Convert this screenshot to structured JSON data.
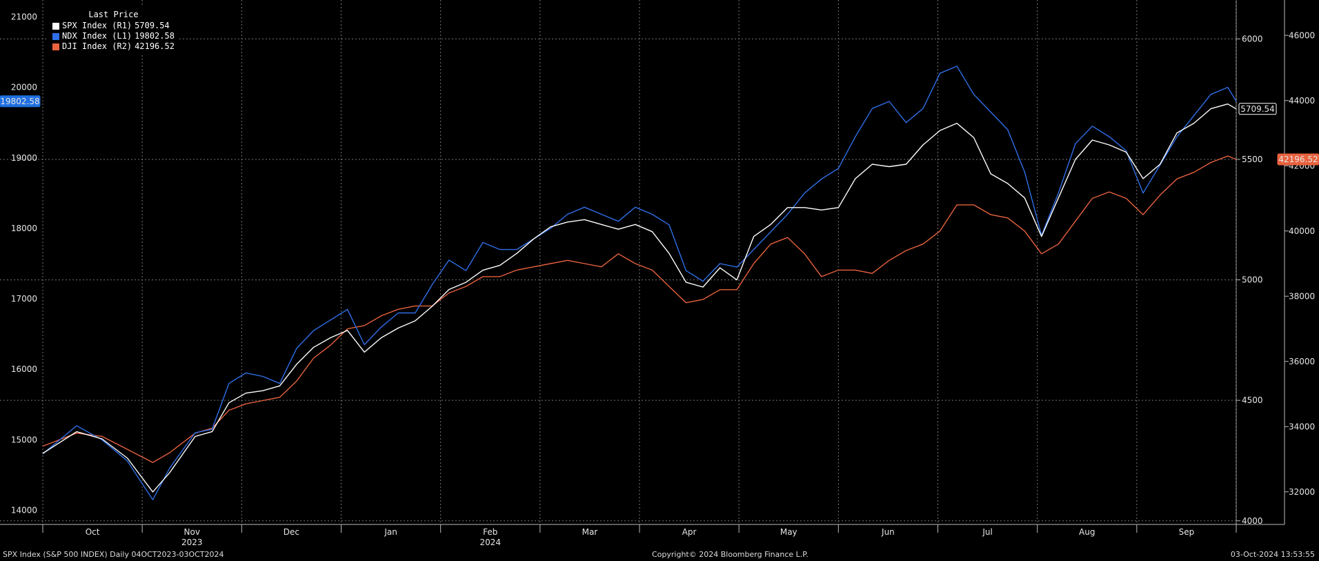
{
  "legend": {
    "header": "Last Price",
    "items": [
      {
        "label": "SPX Index  (R1)",
        "value": "5709.54",
        "color": "#ffffff"
      },
      {
        "label": "NDX Index  (L1)",
        "value": "19802.58",
        "color": "#2f6fe8"
      },
      {
        "label": "DJI Index  (R2)",
        "value": "42196.52",
        "color": "#e8623e"
      }
    ]
  },
  "footer": {
    "left": "SPX Index (S&P 500 INDEX)  Daily 04OCT2023-03OCT2024",
    "center": "Copyright© 2024 Bloomberg Finance L.P.",
    "right": "03-Oct-2024 13:53:55"
  },
  "chart_data": {
    "type": "line",
    "x_months": [
      "Oct",
      "Nov",
      "Dec",
      "Jan",
      "Feb",
      "Mar",
      "Apr",
      "May",
      "Jun",
      "Jul",
      "Aug",
      "Sep"
    ],
    "x_years": [
      "2023",
      "2024"
    ],
    "axes": {
      "left1": {
        "ticks": [
          14000,
          15000,
          16000,
          17000,
          18000,
          19000,
          20000,
          21000
        ],
        "range": [
          13800,
          21200
        ]
      },
      "right1": {
        "ticks": [
          4000,
          4500,
          5000,
          5500,
          6000
        ],
        "range": [
          3985,
          6150
        ]
      },
      "right2": {
        "ticks": [
          32000,
          34000,
          36000,
          38000,
          40000,
          42000,
          44000,
          46000
        ],
        "range": [
          31000,
          47000
        ]
      }
    },
    "grid": true,
    "legend_position": "top-left",
    "last_labels": [
      {
        "series": "NDX Index",
        "value": "19802.58",
        "color": "#1f6fe0"
      },
      {
        "series": "SPX Index",
        "value": "5709.54",
        "color": "#ffffff"
      },
      {
        "series": "DJI Index",
        "value": "42196.52",
        "color": "#e8623e"
      }
    ],
    "series": [
      {
        "name": "NDX Index",
        "axis": "left1",
        "color": "#2f6fe8",
        "points": [
          [
            0,
            14800
          ],
          [
            4,
            15200
          ],
          [
            7,
            15000
          ],
          [
            10,
            14700
          ],
          [
            13,
            14150
          ],
          [
            15,
            14600
          ],
          [
            18,
            15100
          ],
          [
            20,
            15150
          ],
          [
            22,
            15800
          ],
          [
            24,
            15950
          ],
          [
            26,
            15900
          ],
          [
            28,
            15800
          ],
          [
            30,
            16300
          ],
          [
            32,
            16550
          ],
          [
            34,
            16700
          ],
          [
            36,
            16850
          ],
          [
            38,
            16350
          ],
          [
            40,
            16600
          ],
          [
            42,
            16800
          ],
          [
            44,
            16800
          ],
          [
            46,
            17200
          ],
          [
            48,
            17550
          ],
          [
            50,
            17400
          ],
          [
            52,
            17800
          ],
          [
            54,
            17700
          ],
          [
            56,
            17700
          ],
          [
            58,
            17850
          ],
          [
            60,
            18000
          ],
          [
            62,
            18200
          ],
          [
            64,
            18300
          ],
          [
            66,
            18200
          ],
          [
            68,
            18100
          ],
          [
            70,
            18300
          ],
          [
            72,
            18200
          ],
          [
            74,
            18050
          ],
          [
            76,
            17400
          ],
          [
            78,
            17250
          ],
          [
            80,
            17500
          ],
          [
            82,
            17450
          ],
          [
            84,
            17700
          ],
          [
            86,
            17950
          ],
          [
            88,
            18200
          ],
          [
            90,
            18500
          ],
          [
            92,
            18700
          ],
          [
            94,
            18850
          ],
          [
            96,
            19300
          ],
          [
            98,
            19700
          ],
          [
            100,
            19800
          ],
          [
            102,
            19500
          ],
          [
            104,
            19700
          ],
          [
            106,
            20200
          ],
          [
            108,
            20300
          ],
          [
            110,
            19900
          ],
          [
            112,
            19650
          ],
          [
            114,
            19400
          ],
          [
            116,
            18800
          ],
          [
            118,
            17900
          ],
          [
            120,
            18500
          ],
          [
            122,
            19200
          ],
          [
            124,
            19450
          ],
          [
            126,
            19300
          ],
          [
            128,
            19100
          ],
          [
            130,
            18500
          ],
          [
            132,
            18900
          ],
          [
            134,
            19300
          ],
          [
            136,
            19600
          ],
          [
            138,
            19900
          ],
          [
            140,
            20000
          ],
          [
            141,
            19802.58
          ]
        ]
      },
      {
        "name": "SPX Index",
        "axis": "right1",
        "color": "#ffffff",
        "points": [
          [
            0,
            4280
          ],
          [
            4,
            4370
          ],
          [
            7,
            4340
          ],
          [
            10,
            4260
          ],
          [
            13,
            4120
          ],
          [
            15,
            4200
          ],
          [
            18,
            4350
          ],
          [
            20,
            4370
          ],
          [
            22,
            4490
          ],
          [
            24,
            4530
          ],
          [
            26,
            4540
          ],
          [
            28,
            4560
          ],
          [
            30,
            4650
          ],
          [
            32,
            4720
          ],
          [
            34,
            4760
          ],
          [
            36,
            4790
          ],
          [
            38,
            4700
          ],
          [
            40,
            4760
          ],
          [
            42,
            4800
          ],
          [
            44,
            4830
          ],
          [
            46,
            4890
          ],
          [
            48,
            4960
          ],
          [
            50,
            4990
          ],
          [
            52,
            5040
          ],
          [
            54,
            5060
          ],
          [
            56,
            5110
          ],
          [
            58,
            5170
          ],
          [
            60,
            5220
          ],
          [
            62,
            5240
          ],
          [
            64,
            5250
          ],
          [
            66,
            5230
          ],
          [
            68,
            5210
          ],
          [
            70,
            5230
          ],
          [
            72,
            5200
          ],
          [
            74,
            5110
          ],
          [
            76,
            4990
          ],
          [
            78,
            4970
          ],
          [
            80,
            5050
          ],
          [
            82,
            5000
          ],
          [
            84,
            5180
          ],
          [
            86,
            5230
          ],
          [
            88,
            5300
          ],
          [
            90,
            5300
          ],
          [
            92,
            5290
          ],
          [
            94,
            5300
          ],
          [
            96,
            5420
          ],
          [
            98,
            5480
          ],
          [
            100,
            5470
          ],
          [
            102,
            5480
          ],
          [
            104,
            5560
          ],
          [
            106,
            5620
          ],
          [
            108,
            5650
          ],
          [
            110,
            5590
          ],
          [
            112,
            5440
          ],
          [
            114,
            5400
          ],
          [
            116,
            5340
          ],
          [
            118,
            5180
          ],
          [
            120,
            5340
          ],
          [
            122,
            5500
          ],
          [
            124,
            5580
          ],
          [
            126,
            5560
          ],
          [
            128,
            5530
          ],
          [
            130,
            5420
          ],
          [
            132,
            5480
          ],
          [
            134,
            5610
          ],
          [
            136,
            5650
          ],
          [
            138,
            5710
          ],
          [
            140,
            5730
          ],
          [
            141,
            5709.54
          ]
        ]
      },
      {
        "name": "DJI Index",
        "axis": "right2",
        "color": "#e8623e",
        "points": [
          [
            0,
            33400
          ],
          [
            4,
            33800
          ],
          [
            7,
            33700
          ],
          [
            10,
            33300
          ],
          [
            13,
            32900
          ],
          [
            15,
            33200
          ],
          [
            18,
            33800
          ],
          [
            20,
            33950
          ],
          [
            22,
            34500
          ],
          [
            24,
            34700
          ],
          [
            26,
            34800
          ],
          [
            28,
            34900
          ],
          [
            30,
            35400
          ],
          [
            32,
            36100
          ],
          [
            34,
            36500
          ],
          [
            36,
            37000
          ],
          [
            38,
            37100
          ],
          [
            40,
            37400
          ],
          [
            42,
            37600
          ],
          [
            44,
            37700
          ],
          [
            46,
            37700
          ],
          [
            48,
            38100
          ],
          [
            50,
            38300
          ],
          [
            52,
            38600
          ],
          [
            54,
            38600
          ],
          [
            56,
            38800
          ],
          [
            58,
            38900
          ],
          [
            60,
            39000
          ],
          [
            62,
            39100
          ],
          [
            64,
            39000
          ],
          [
            66,
            38900
          ],
          [
            68,
            39300
          ],
          [
            70,
            39000
          ],
          [
            72,
            38800
          ],
          [
            74,
            38300
          ],
          [
            76,
            37800
          ],
          [
            78,
            37900
          ],
          [
            80,
            38200
          ],
          [
            82,
            38200
          ],
          [
            84,
            39000
          ],
          [
            86,
            39600
          ],
          [
            88,
            39800
          ],
          [
            90,
            39300
          ],
          [
            92,
            38600
          ],
          [
            94,
            38800
          ],
          [
            96,
            38800
          ],
          [
            98,
            38700
          ],
          [
            100,
            39100
          ],
          [
            102,
            39400
          ],
          [
            104,
            39600
          ],
          [
            106,
            40000
          ],
          [
            108,
            40800
          ],
          [
            110,
            40800
          ],
          [
            112,
            40500
          ],
          [
            114,
            40400
          ],
          [
            116,
            40000
          ],
          [
            118,
            39300
          ],
          [
            120,
            39600
          ],
          [
            122,
            40300
          ],
          [
            124,
            41000
          ],
          [
            126,
            41200
          ],
          [
            128,
            41000
          ],
          [
            130,
            40500
          ],
          [
            132,
            41100
          ],
          [
            134,
            41600
          ],
          [
            136,
            41800
          ],
          [
            138,
            42100
          ],
          [
            140,
            42300
          ],
          [
            141,
            42196.52
          ]
        ]
      }
    ]
  }
}
